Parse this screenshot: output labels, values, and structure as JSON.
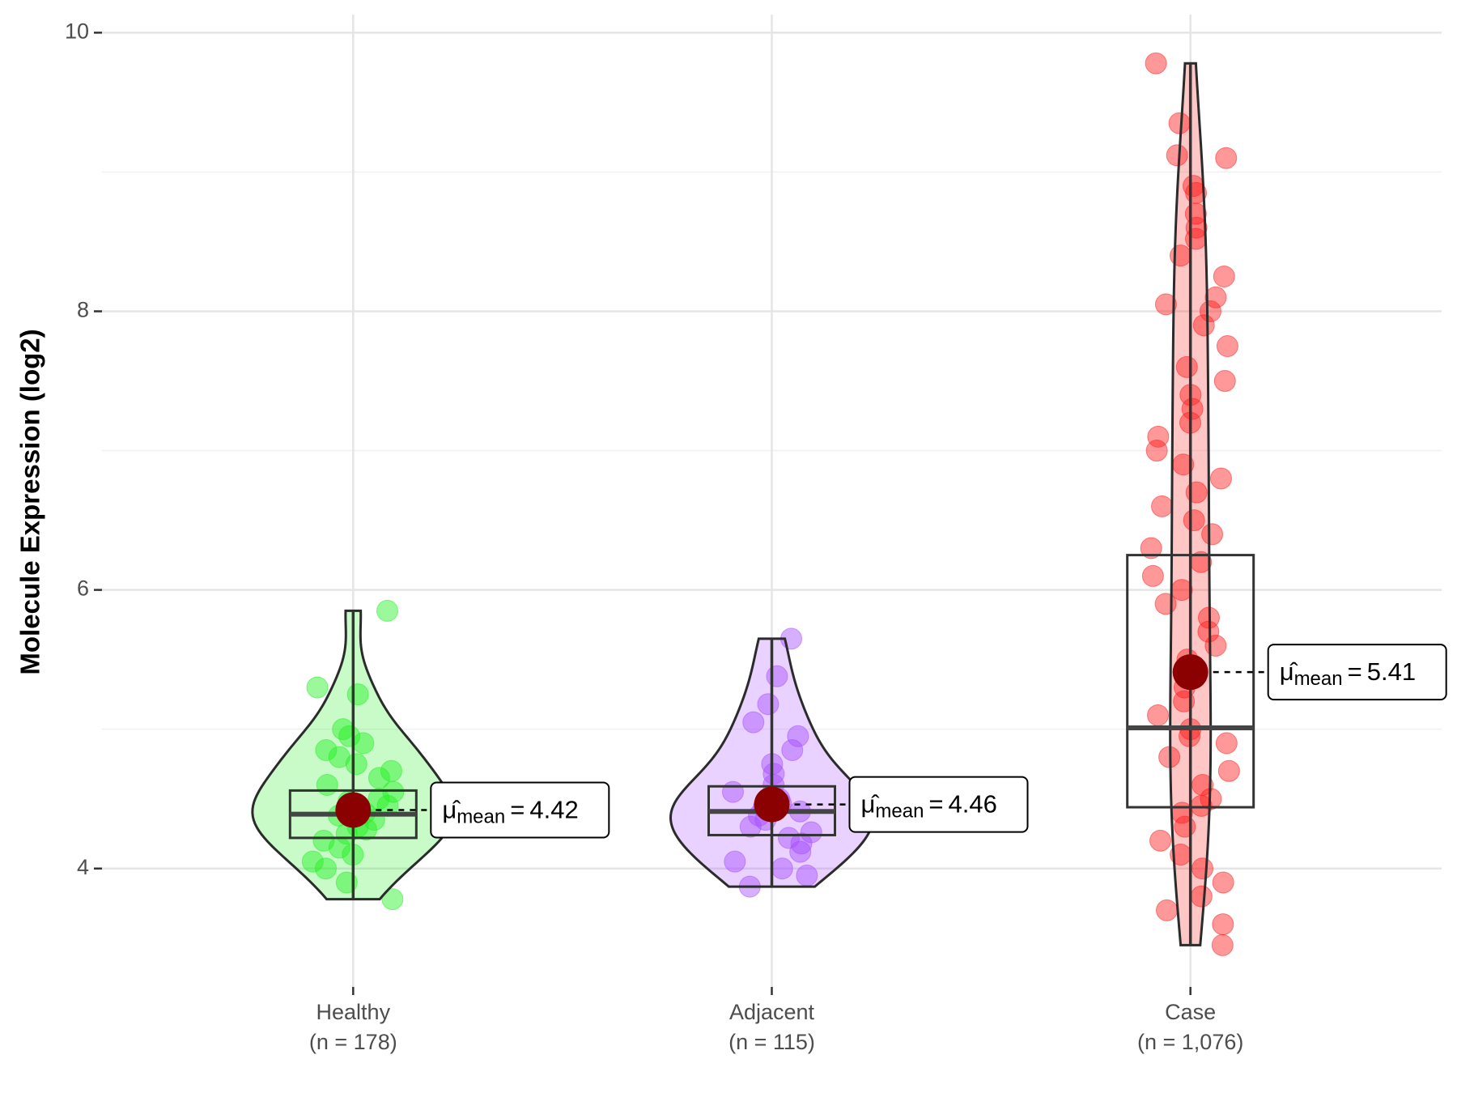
{
  "chart_data": {
    "type": "violin",
    "y_label": "Molecule Expression (log2)",
    "categories": [
      "Healthy",
      "Adjacent",
      "Case"
    ],
    "n_labels": [
      "(n = 178)",
      "(n = 115)",
      "(n = 1,076)"
    ],
    "ylim": [
      3.15,
      10.13
    ],
    "yticks": [
      4,
      6,
      8,
      10
    ],
    "minor_yticks": [
      5,
      7,
      9
    ],
    "grid": true,
    "mean_label": {
      "symbol": "μ̂",
      "subscript": "mean",
      "operator": "="
    },
    "mean_color": "#8b0000",
    "series": [
      {
        "name": "Healthy",
        "color": "#22f022",
        "mean": 4.42,
        "box": {
          "lower": 3.78,
          "q1": 4.22,
          "median": 4.39,
          "q3": 4.56,
          "upper": 5.85
        },
        "points": [
          5.85,
          5.3,
          5.25,
          5.0,
          4.95,
          4.9,
          4.85,
          4.8,
          4.75,
          4.7,
          4.65,
          4.6,
          4.55,
          4.5,
          4.48,
          4.45,
          4.42,
          4.4,
          4.38,
          4.35,
          4.3,
          4.28,
          4.25,
          4.2,
          4.15,
          4.1,
          4.05,
          4.0,
          3.9,
          3.78
        ]
      },
      {
        "name": "Adjacent",
        "color": "#a64dff",
        "mean": 4.46,
        "box": {
          "lower": 3.87,
          "q1": 4.24,
          "median": 4.41,
          "q3": 4.59,
          "upper": 5.65
        },
        "points": [
          5.65,
          5.38,
          5.18,
          5.05,
          4.95,
          4.85,
          4.75,
          4.68,
          4.6,
          4.55,
          4.5,
          4.47,
          4.44,
          4.41,
          4.38,
          4.35,
          4.3,
          4.26,
          4.22,
          4.18,
          4.12,
          4.05,
          4.0,
          3.95,
          3.87
        ]
      },
      {
        "name": "Case",
        "color": "#ff1a1a",
        "mean": 5.41,
        "box": {
          "lower": 3.45,
          "q1": 4.44,
          "median": 5.01,
          "q3": 6.25,
          "upper": 9.78
        },
        "points": [
          9.78,
          9.35,
          9.12,
          9.1,
          8.9,
          8.85,
          8.7,
          8.6,
          8.52,
          8.4,
          8.25,
          8.1,
          8.05,
          8.0,
          7.9,
          7.75,
          7.6,
          7.5,
          7.4,
          7.3,
          7.2,
          7.1,
          7.0,
          6.9,
          6.8,
          6.7,
          6.6,
          6.5,
          6.4,
          6.3,
          6.2,
          6.1,
          6.0,
          5.9,
          5.8,
          5.7,
          5.6,
          5.5,
          5.4,
          5.3,
          5.2,
          5.1,
          5.0,
          4.95,
          4.9,
          4.8,
          4.7,
          4.6,
          4.5,
          4.45,
          4.4,
          4.3,
          4.2,
          4.1,
          4.0,
          3.9,
          3.8,
          3.7,
          3.6,
          3.45
        ]
      }
    ]
  }
}
